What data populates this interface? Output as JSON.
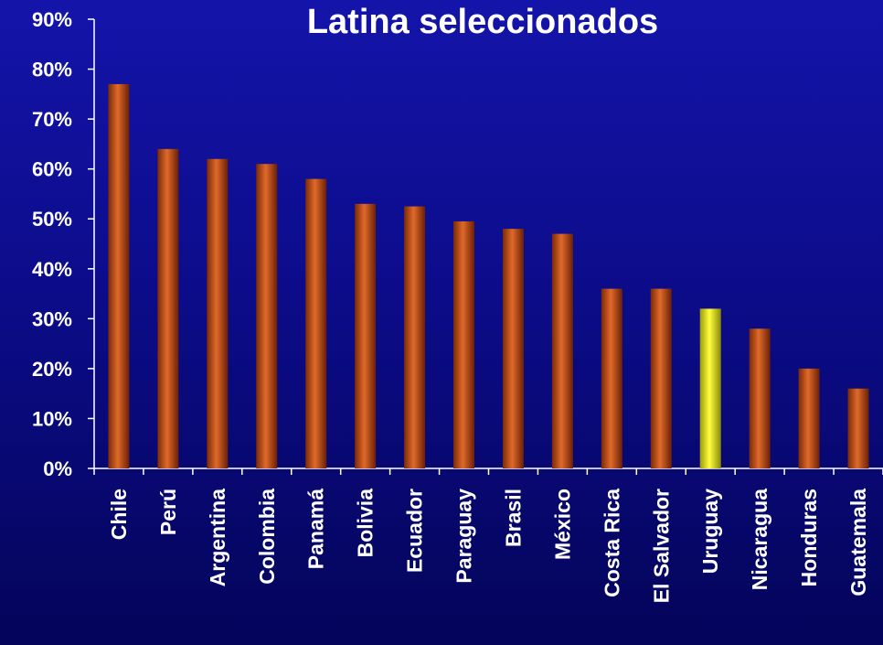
{
  "chart_data": {
    "type": "bar",
    "title": "Latina seleccionados",
    "categories": [
      "Chile",
      "Perú",
      "Argentina",
      "Colombia",
      "Panamá",
      "Bolivia",
      "Ecuador",
      "Paraguay",
      "Brasil",
      "México",
      "Costa Rica",
      "El Salvador",
      "Uruguay",
      "Nicaragua",
      "Honduras",
      "Guatemala"
    ],
    "values": [
      77,
      64,
      62,
      61,
      58,
      53,
      52.5,
      49.5,
      48,
      47,
      36,
      36,
      32,
      28,
      20,
      16
    ],
    "highlight_category": "Uruguay",
    "ylim": [
      0,
      90
    ],
    "yticks": [
      "0%",
      "10%",
      "20%",
      "30%",
      "40%",
      "50%",
      "60%",
      "70%",
      "80%",
      "90%"
    ],
    "ytick_values": [
      0,
      10,
      20,
      30,
      40,
      50,
      60,
      70,
      80,
      90
    ],
    "xlabel": "",
    "ylabel": "",
    "grid": false,
    "colors": {
      "bar": "#c0501a",
      "bar_highlight": "#e8e81a",
      "axis": "#ffffff",
      "text": "#ffffff"
    }
  }
}
